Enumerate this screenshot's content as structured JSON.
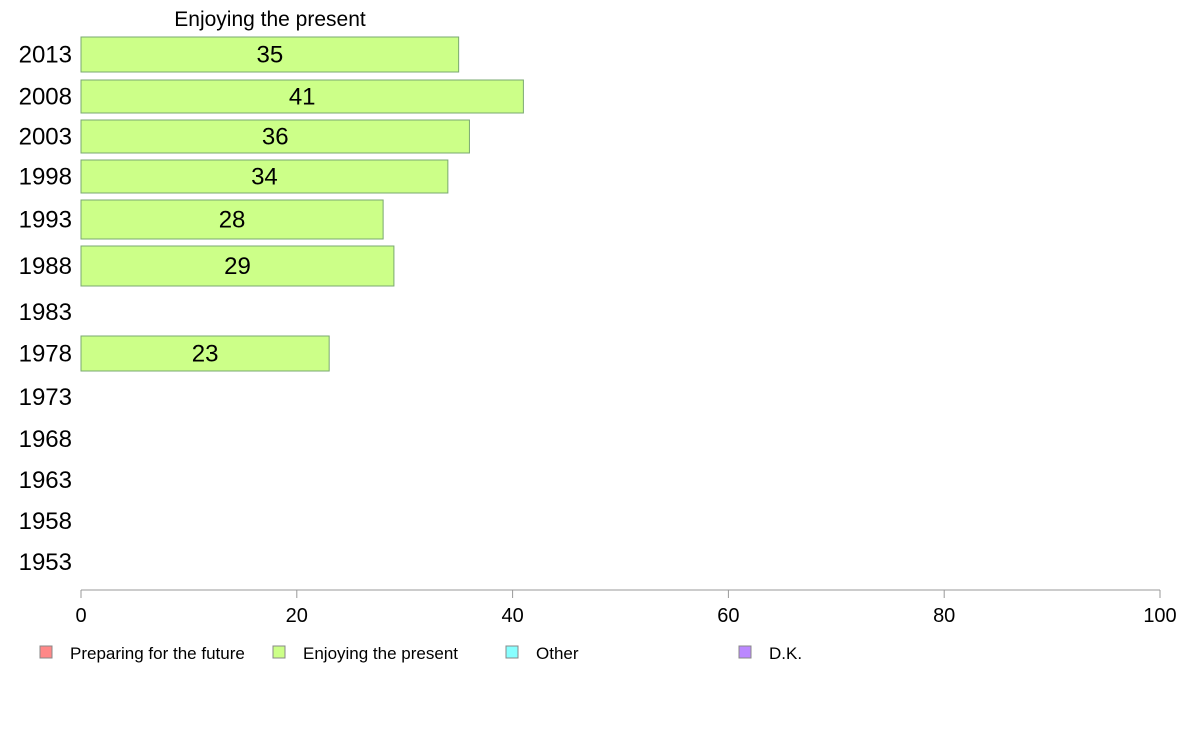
{
  "chart_data": {
    "type": "bar",
    "orientation": "horizontal",
    "title": "Enjoying the present",
    "categories": [
      "2013",
      "2008",
      "2003",
      "1998",
      "1993",
      "1988",
      "1983",
      "1978",
      "1973",
      "1968",
      "1963",
      "1958",
      "1953"
    ],
    "series": [
      {
        "name": "Enjoying the present",
        "color": "#ccff88",
        "values": [
          35,
          41,
          36,
          34,
          28,
          29,
          null,
          23,
          null,
          null,
          null,
          null,
          null
        ],
        "labels": [
          "35",
          "41",
          "36",
          "34",
          "28",
          "29",
          "",
          "23",
          "",
          "",
          "",
          "",
          ""
        ]
      }
    ],
    "xlim": [
      0,
      100
    ],
    "xticks": [
      "0",
      "20",
      "40",
      "60",
      "80",
      "100"
    ],
    "xlabel": "",
    "ylabel": "",
    "grid": false,
    "legend_position": "bottom",
    "legend": [
      {
        "label": "Preparing for the future",
        "color": "#ff8888"
      },
      {
        "label": "Enjoying the present",
        "color": "#ccff88"
      },
      {
        "label": "Other",
        "color": "#88ffff"
      },
      {
        "label": "D.K.",
        "color": "#bb88ff"
      }
    ]
  }
}
